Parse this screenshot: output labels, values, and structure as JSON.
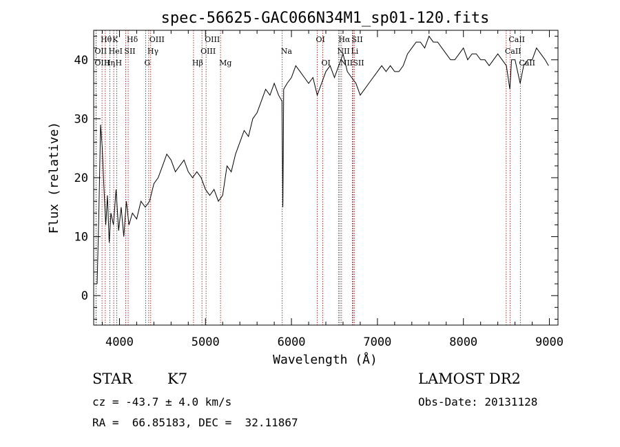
{
  "chart_data": {
    "type": "line",
    "title": "spec-56625-GAC066N34M1_sp01-120.fits",
    "xlabel": "Wavelength (Å)",
    "ylabel": "Flux (relative)",
    "xlim": [
      3700,
      9100
    ],
    "ylim": [
      -5,
      45
    ],
    "xticks": [
      4000,
      5000,
      6000,
      7000,
      8000,
      9000
    ],
    "yticks": [
      0,
      10,
      20,
      30,
      40
    ],
    "x_minor_step": 200,
    "y_minor_step": 2,
    "grid": false,
    "line_color": "#000000",
    "marker_color": "#8b0000",
    "series": [
      {
        "x": [
          3740,
          3760,
          3780,
          3800,
          3820,
          3840,
          3860,
          3880,
          3900,
          3930,
          3960,
          3990,
          4020,
          4050,
          4080,
          4110,
          4150,
          4200,
          4250,
          4300,
          4350,
          4400,
          4450,
          4500,
          4550,
          4600,
          4650,
          4700,
          4750,
          4800,
          4850,
          4900,
          4950,
          5000,
          5050,
          5100,
          5150,
          5200,
          5250,
          5300,
          5350,
          5400,
          5450,
          5500,
          5550,
          5600,
          5650,
          5700,
          5750,
          5800,
          5850,
          5890,
          5900,
          5910,
          5950,
          6000,
          6050,
          6100,
          6150,
          6200,
          6250,
          6300,
          6350,
          6400,
          6450,
          6500,
          6550,
          6600,
          6650,
          6700,
          6750,
          6800,
          6850,
          6900,
          6950,
          7000,
          7050,
          7100,
          7150,
          7200,
          7250,
          7300,
          7350,
          7400,
          7450,
          7500,
          7550,
          7600,
          7650,
          7700,
          7750,
          7800,
          7850,
          7900,
          7950,
          8000,
          8050,
          8100,
          8150,
          8200,
          8250,
          8300,
          8350,
          8400,
          8450,
          8500,
          8540,
          8560,
          8600,
          8660,
          8700,
          8750,
          8800,
          8850,
          8900,
          8950,
          8990
        ],
        "y": [
          2,
          14,
          29,
          25,
          18,
          12,
          17,
          9,
          14,
          12,
          18,
          11,
          15,
          10,
          16,
          12,
          14,
          13,
          16,
          15,
          16,
          19,
          20,
          22,
          24,
          23,
          21,
          22,
          23,
          21,
          20,
          21,
          20,
          18,
          17,
          18,
          16,
          17,
          22,
          21,
          24,
          26,
          28,
          27,
          30,
          31,
          33,
          35,
          34,
          36,
          34,
          33,
          15,
          35,
          36,
          37,
          39,
          38,
          37,
          36,
          37,
          34,
          36,
          38,
          39,
          37,
          39,
          41,
          38,
          37,
          36,
          34,
          35,
          36,
          37,
          38,
          39,
          38,
          39,
          38,
          38,
          39,
          41,
          42,
          43,
          43,
          42,
          44,
          43,
          43,
          42,
          41,
          40,
          40,
          41,
          42,
          40,
          41,
          41,
          40,
          40,
          39,
          40,
          41,
          40,
          39,
          35,
          40,
          40,
          36,
          39,
          40,
          40,
          42,
          41,
          40,
          39
        ]
      }
    ],
    "spectral_lines": [
      {
        "label": "Hθ",
        "x": 3797,
        "row": 0
      },
      {
        "label": "K",
        "x": 3933,
        "row": 0
      },
      {
        "label": "Hδ",
        "x": 4101,
        "row": 0
      },
      {
        "label": "OIII",
        "x": 4363,
        "row": 0
      },
      {
        "label": "OIII",
        "x": 5007,
        "row": 0
      },
      {
        "label": "OI",
        "x": 6300,
        "row": 0
      },
      {
        "label": "Hα",
        "x": 6563,
        "row": 0
      },
      {
        "label": "SII",
        "x": 6716,
        "row": 0
      },
      {
        "label": "CaII",
        "x": 8542,
        "row": 0
      },
      {
        "label": "OII",
        "x": 3727,
        "row": 1
      },
      {
        "label": "HeI",
        "x": 3889,
        "row": 1
      },
      {
        "label": "SII",
        "x": 4072,
        "row": 1
      },
      {
        "label": "Hγ",
        "x": 4340,
        "row": 1
      },
      {
        "label": "OIII",
        "x": 4959,
        "row": 1
      },
      {
        "label": "Na",
        "x": 5893,
        "row": 1
      },
      {
        "label": "NII",
        "x": 6548,
        "row": 1
      },
      {
        "label": "Li",
        "x": 6708,
        "row": 1
      },
      {
        "label": "CaII",
        "x": 8498,
        "row": 1
      },
      {
        "label": "OIII",
        "x": 3727,
        "row": 2
      },
      {
        "label": "Hη",
        "x": 3835,
        "row": 2
      },
      {
        "label": "H",
        "x": 3968,
        "row": 2
      },
      {
        "label": "G",
        "x": 4305,
        "row": 2
      },
      {
        "label": "Hβ",
        "x": 4861,
        "row": 2
      },
      {
        "label": "Mg",
        "x": 5175,
        "row": 2
      },
      {
        "label": "OI",
        "x": 6364,
        "row": 2
      },
      {
        "label": "NII",
        "x": 6583,
        "row": 2
      },
      {
        "label": "SII",
        "x": 6731,
        "row": 2
      },
      {
        "label": "CaII",
        "x": 8662,
        "row": 2
      }
    ]
  },
  "info": {
    "object_class": "STAR",
    "subclass": "K7",
    "survey": "LAMOST DR2",
    "redshift": "cz = -43.7 ± 4.0 km/s",
    "obs_date": "Obs-Date: 20131128",
    "coords": "RA =  66.85183, DEC =  32.11867"
  }
}
